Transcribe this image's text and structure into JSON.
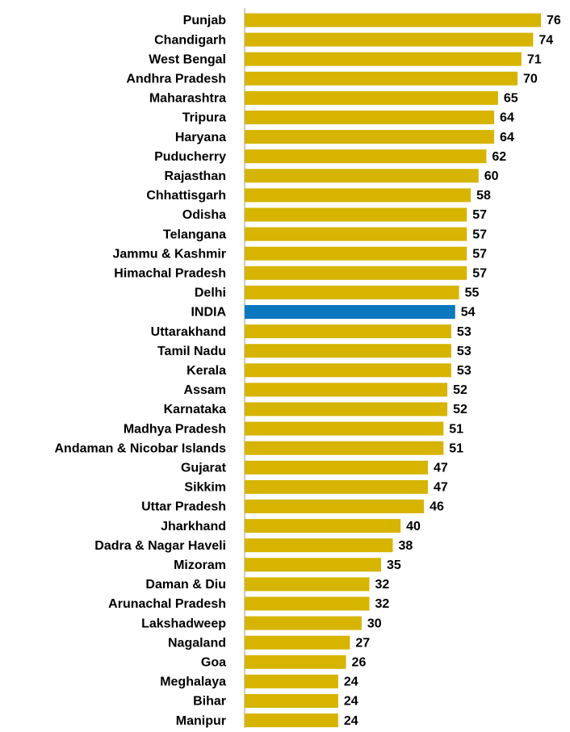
{
  "chart_data": {
    "type": "barh",
    "categories": [
      "Punjab",
      "Chandigarh",
      "West Bengal",
      "Andhra Pradesh",
      "Maharashtra",
      "Tripura",
      "Haryana",
      "Puducherry",
      "Rajasthan",
      "Chhattisgarh",
      "Odisha",
      "Telangana",
      "Jammu & Kashmir",
      "Himachal Pradesh",
      "Delhi",
      "INDIA",
      "Uttarakhand",
      "Tamil Nadu",
      "Kerala",
      "Assam",
      "Karnataka",
      "Madhya Pradesh",
      "Andaman & Nicobar Islands",
      "Gujarat",
      "Sikkim",
      "Uttar Pradesh",
      "Jharkhand",
      "Dadra & Nagar Haveli",
      "Mizoram",
      "Daman & Diu",
      "Arunachal Pradesh",
      "Lakshadweep",
      "Nagaland",
      "Goa",
      "Meghalaya",
      "Bihar",
      "Manipur"
    ],
    "values": [
      76,
      74,
      71,
      70,
      65,
      64,
      64,
      62,
      60,
      58,
      57,
      57,
      57,
      57,
      55,
      54,
      53,
      53,
      53,
      52,
      52,
      51,
      51,
      47,
      47,
      46,
      40,
      38,
      35,
      32,
      32,
      30,
      27,
      26,
      24,
      24,
      24
    ],
    "colors": [
      "#d6b400",
      "#d6b400",
      "#d6b400",
      "#d6b400",
      "#d6b400",
      "#d6b400",
      "#d6b400",
      "#d6b400",
      "#d6b400",
      "#d6b400",
      "#d6b400",
      "#d6b400",
      "#d6b400",
      "#d6b400",
      "#d6b400",
      "#0a78be",
      "#d6b400",
      "#d6b400",
      "#d6b400",
      "#d6b400",
      "#d6b400",
      "#d6b400",
      "#d6b400",
      "#d6b400",
      "#d6b400",
      "#d6b400",
      "#d6b400",
      "#d6b400",
      "#d6b400",
      "#d6b400",
      "#d6b400",
      "#d6b400",
      "#d6b400",
      "#d6b400",
      "#d6b400",
      "#d6b400",
      "#d6b400"
    ],
    "xlim": [
      0,
      76
    ]
  }
}
